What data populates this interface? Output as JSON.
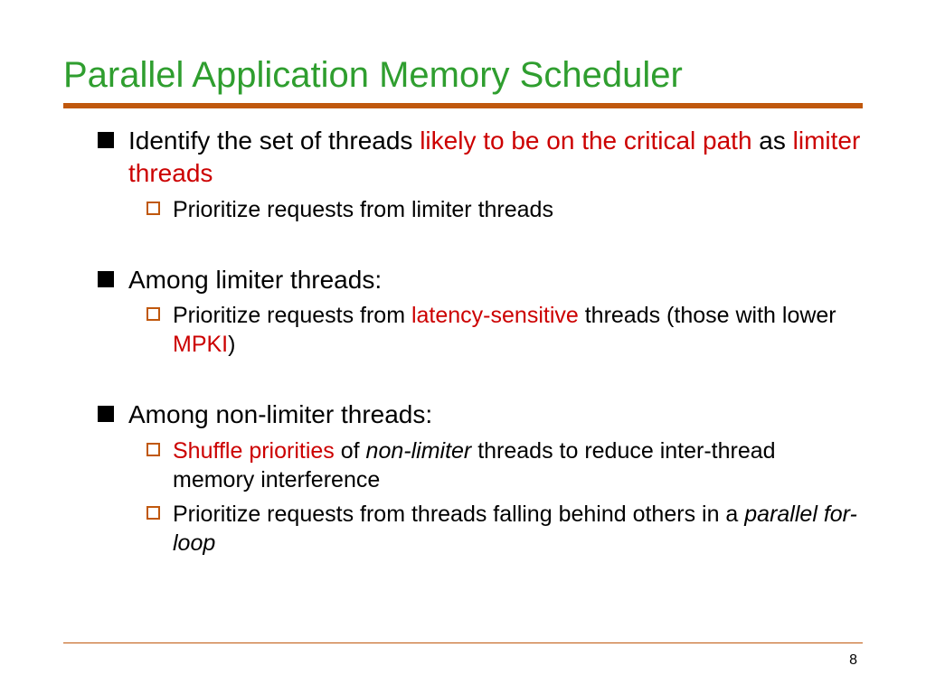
{
  "colors": {
    "title": "#2f9e2f",
    "accent_bar": "#c0580d",
    "highlight": "#cc0000",
    "text": "#000000",
    "background": "#ffffff",
    "l1_bullet_fill": "#000000",
    "l2_bullet_border": "#c0580d"
  },
  "typography": {
    "family": "Verdana",
    "title_size_pt": 30,
    "body_size_pt": 21,
    "sub_size_pt": 19
  },
  "title": "Parallel Application Memory Scheduler",
  "body": {
    "item1": {
      "pre": "Identify the set of threads ",
      "hl1": "likely to be on the critical path",
      "mid": " as ",
      "hl2": "limiter threads",
      "sub1": "Prioritize requests from limiter threads"
    },
    "item2": {
      "text": "Among limiter threads:",
      "sub1_a": "Prioritize requests from ",
      "sub1_b": "latency-sensitive",
      "sub1_c": " threads (those with lower ",
      "sub1_d": "MPKI",
      "sub1_e": ")"
    },
    "item3": {
      "text": "Among non-limiter threads:",
      "sub1_a": "Shuffle priorities",
      "sub1_b": " of ",
      "sub1_c": "non-limiter",
      "sub1_d": " threads to reduce inter-thread memory interference",
      "sub2_a": "Prioritize requests from threads falling behind others in a ",
      "sub2_b": "parallel for-loop"
    }
  },
  "page_number": "8"
}
